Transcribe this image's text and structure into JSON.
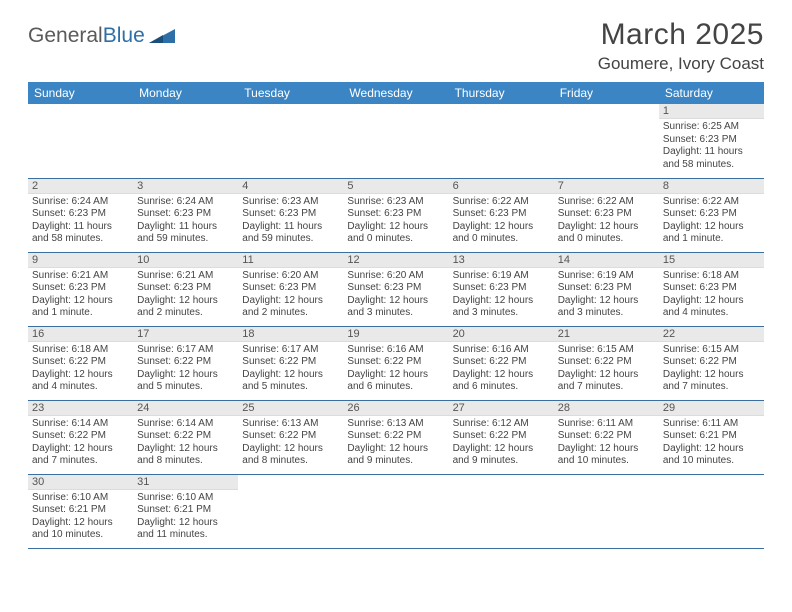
{
  "logo": {
    "text1": "General",
    "text2": "Blue"
  },
  "title": "March 2025",
  "location": "Goumere, Ivory Coast",
  "colors": {
    "header_bg": "#3b85c4",
    "header_fg": "#ffffff",
    "row_border": "#3b6fa0",
    "daynum_bg": "#e9e9e9",
    "logo_gray": "#5a5a5a",
    "logo_blue": "#2f6fa7"
  },
  "daysOfWeek": [
    "Sunday",
    "Monday",
    "Tuesday",
    "Wednesday",
    "Thursday",
    "Friday",
    "Saturday"
  ],
  "weeks": [
    [
      null,
      null,
      null,
      null,
      null,
      null,
      {
        "n": "1",
        "sunrise": "Sunrise: 6:25 AM",
        "sunset": "Sunset: 6:23 PM",
        "daylight": "Daylight: 11 hours and 58 minutes."
      }
    ],
    [
      {
        "n": "2",
        "sunrise": "Sunrise: 6:24 AM",
        "sunset": "Sunset: 6:23 PM",
        "daylight": "Daylight: 11 hours and 58 minutes."
      },
      {
        "n": "3",
        "sunrise": "Sunrise: 6:24 AM",
        "sunset": "Sunset: 6:23 PM",
        "daylight": "Daylight: 11 hours and 59 minutes."
      },
      {
        "n": "4",
        "sunrise": "Sunrise: 6:23 AM",
        "sunset": "Sunset: 6:23 PM",
        "daylight": "Daylight: 11 hours and 59 minutes."
      },
      {
        "n": "5",
        "sunrise": "Sunrise: 6:23 AM",
        "sunset": "Sunset: 6:23 PM",
        "daylight": "Daylight: 12 hours and 0 minutes."
      },
      {
        "n": "6",
        "sunrise": "Sunrise: 6:22 AM",
        "sunset": "Sunset: 6:23 PM",
        "daylight": "Daylight: 12 hours and 0 minutes."
      },
      {
        "n": "7",
        "sunrise": "Sunrise: 6:22 AM",
        "sunset": "Sunset: 6:23 PM",
        "daylight": "Daylight: 12 hours and 0 minutes."
      },
      {
        "n": "8",
        "sunrise": "Sunrise: 6:22 AM",
        "sunset": "Sunset: 6:23 PM",
        "daylight": "Daylight: 12 hours and 1 minute."
      }
    ],
    [
      {
        "n": "9",
        "sunrise": "Sunrise: 6:21 AM",
        "sunset": "Sunset: 6:23 PM",
        "daylight": "Daylight: 12 hours and 1 minute."
      },
      {
        "n": "10",
        "sunrise": "Sunrise: 6:21 AM",
        "sunset": "Sunset: 6:23 PM",
        "daylight": "Daylight: 12 hours and 2 minutes."
      },
      {
        "n": "11",
        "sunrise": "Sunrise: 6:20 AM",
        "sunset": "Sunset: 6:23 PM",
        "daylight": "Daylight: 12 hours and 2 minutes."
      },
      {
        "n": "12",
        "sunrise": "Sunrise: 6:20 AM",
        "sunset": "Sunset: 6:23 PM",
        "daylight": "Daylight: 12 hours and 3 minutes."
      },
      {
        "n": "13",
        "sunrise": "Sunrise: 6:19 AM",
        "sunset": "Sunset: 6:23 PM",
        "daylight": "Daylight: 12 hours and 3 minutes."
      },
      {
        "n": "14",
        "sunrise": "Sunrise: 6:19 AM",
        "sunset": "Sunset: 6:23 PM",
        "daylight": "Daylight: 12 hours and 3 minutes."
      },
      {
        "n": "15",
        "sunrise": "Sunrise: 6:18 AM",
        "sunset": "Sunset: 6:23 PM",
        "daylight": "Daylight: 12 hours and 4 minutes."
      }
    ],
    [
      {
        "n": "16",
        "sunrise": "Sunrise: 6:18 AM",
        "sunset": "Sunset: 6:22 PM",
        "daylight": "Daylight: 12 hours and 4 minutes."
      },
      {
        "n": "17",
        "sunrise": "Sunrise: 6:17 AM",
        "sunset": "Sunset: 6:22 PM",
        "daylight": "Daylight: 12 hours and 5 minutes."
      },
      {
        "n": "18",
        "sunrise": "Sunrise: 6:17 AM",
        "sunset": "Sunset: 6:22 PM",
        "daylight": "Daylight: 12 hours and 5 minutes."
      },
      {
        "n": "19",
        "sunrise": "Sunrise: 6:16 AM",
        "sunset": "Sunset: 6:22 PM",
        "daylight": "Daylight: 12 hours and 6 minutes."
      },
      {
        "n": "20",
        "sunrise": "Sunrise: 6:16 AM",
        "sunset": "Sunset: 6:22 PM",
        "daylight": "Daylight: 12 hours and 6 minutes."
      },
      {
        "n": "21",
        "sunrise": "Sunrise: 6:15 AM",
        "sunset": "Sunset: 6:22 PM",
        "daylight": "Daylight: 12 hours and 7 minutes."
      },
      {
        "n": "22",
        "sunrise": "Sunrise: 6:15 AM",
        "sunset": "Sunset: 6:22 PM",
        "daylight": "Daylight: 12 hours and 7 minutes."
      }
    ],
    [
      {
        "n": "23",
        "sunrise": "Sunrise: 6:14 AM",
        "sunset": "Sunset: 6:22 PM",
        "daylight": "Daylight: 12 hours and 7 minutes."
      },
      {
        "n": "24",
        "sunrise": "Sunrise: 6:14 AM",
        "sunset": "Sunset: 6:22 PM",
        "daylight": "Daylight: 12 hours and 8 minutes."
      },
      {
        "n": "25",
        "sunrise": "Sunrise: 6:13 AM",
        "sunset": "Sunset: 6:22 PM",
        "daylight": "Daylight: 12 hours and 8 minutes."
      },
      {
        "n": "26",
        "sunrise": "Sunrise: 6:13 AM",
        "sunset": "Sunset: 6:22 PM",
        "daylight": "Daylight: 12 hours and 9 minutes."
      },
      {
        "n": "27",
        "sunrise": "Sunrise: 6:12 AM",
        "sunset": "Sunset: 6:22 PM",
        "daylight": "Daylight: 12 hours and 9 minutes."
      },
      {
        "n": "28",
        "sunrise": "Sunrise: 6:11 AM",
        "sunset": "Sunset: 6:22 PM",
        "daylight": "Daylight: 12 hours and 10 minutes."
      },
      {
        "n": "29",
        "sunrise": "Sunrise: 6:11 AM",
        "sunset": "Sunset: 6:21 PM",
        "daylight": "Daylight: 12 hours and 10 minutes."
      }
    ],
    [
      {
        "n": "30",
        "sunrise": "Sunrise: 6:10 AM",
        "sunset": "Sunset: 6:21 PM",
        "daylight": "Daylight: 12 hours and 10 minutes."
      },
      {
        "n": "31",
        "sunrise": "Sunrise: 6:10 AM",
        "sunset": "Sunset: 6:21 PM",
        "daylight": "Daylight: 12 hours and 11 minutes."
      },
      null,
      null,
      null,
      null,
      null
    ]
  ]
}
